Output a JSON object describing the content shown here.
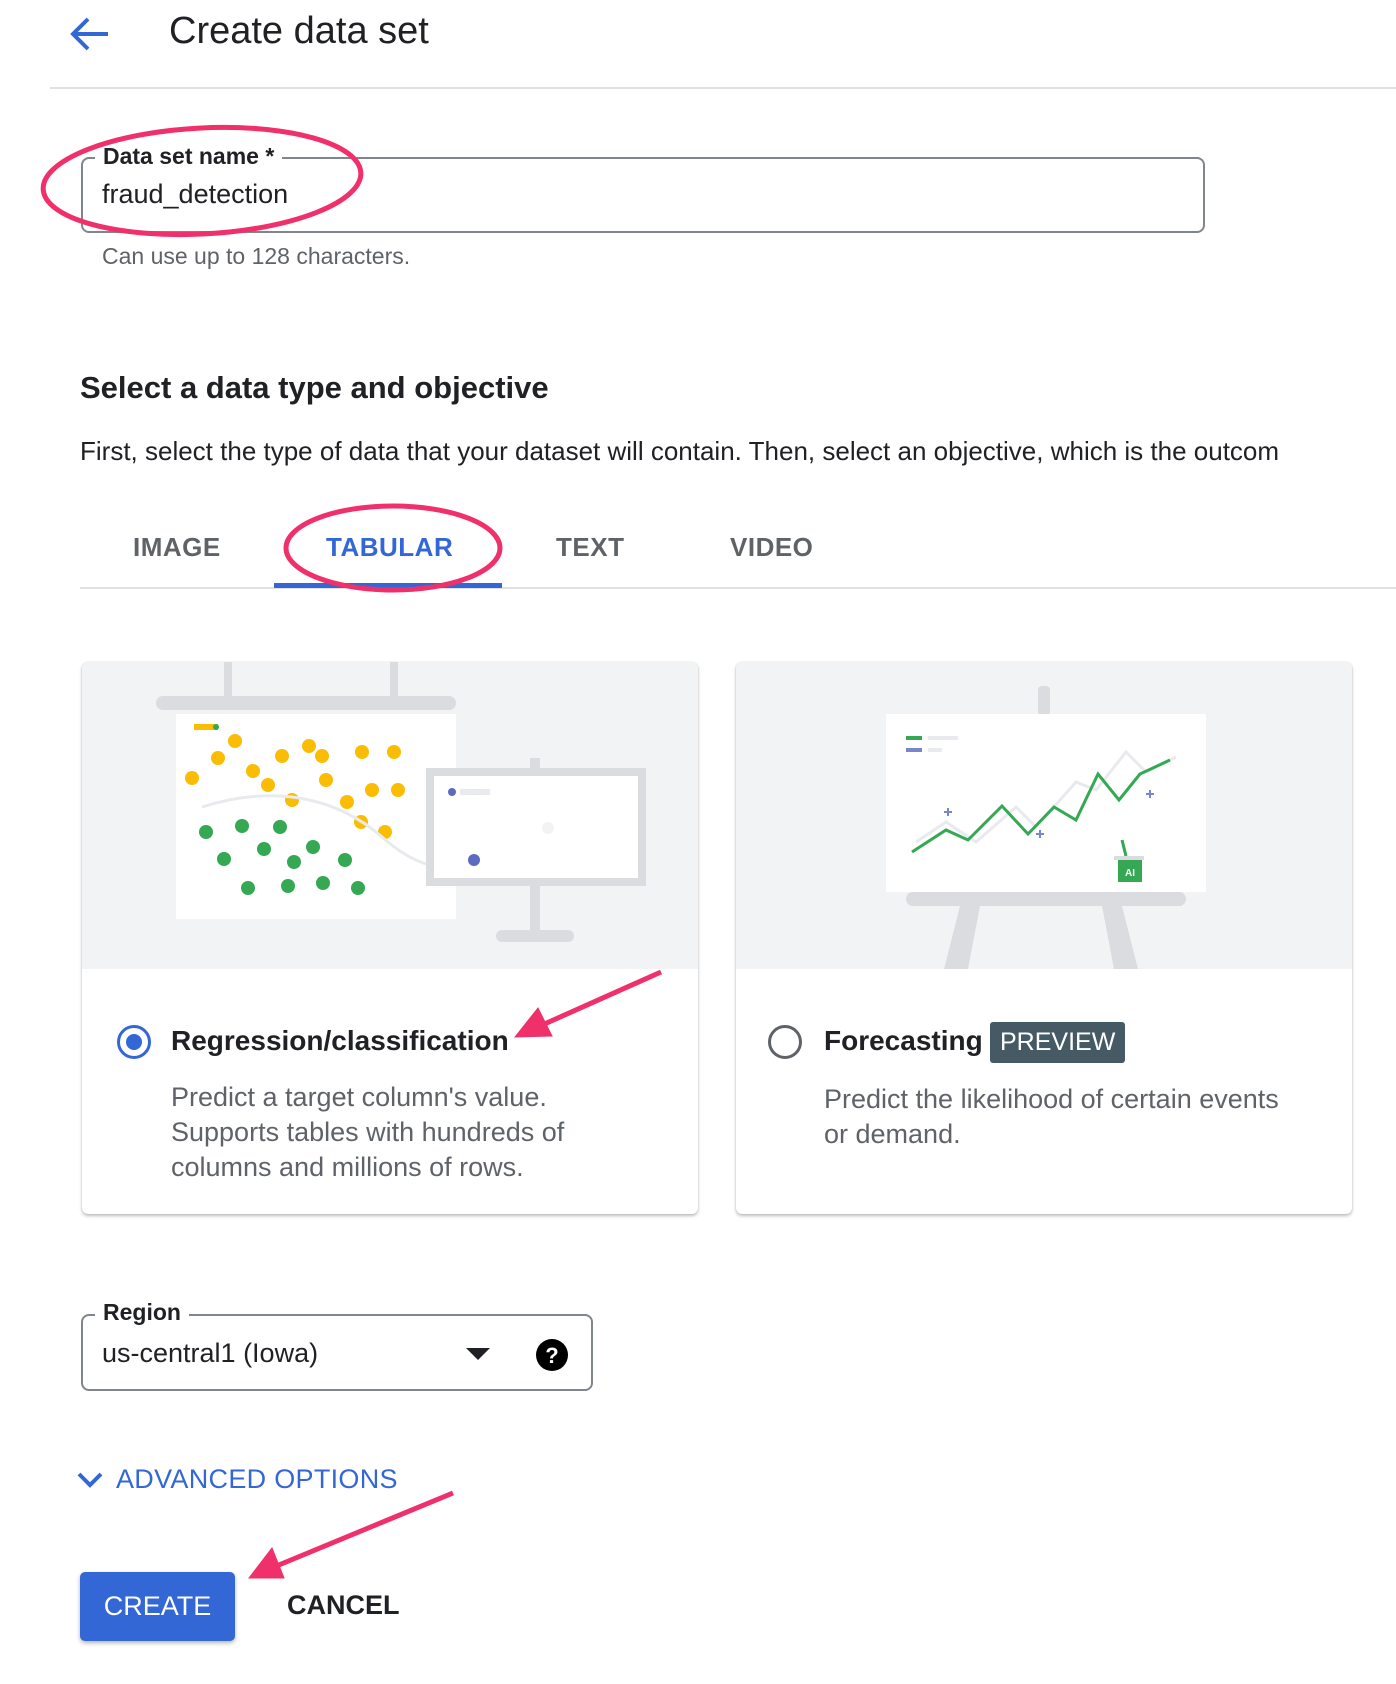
{
  "header": {
    "title": "Create data set",
    "back_icon": "arrow-left-icon"
  },
  "name_field": {
    "label": "Data set name *",
    "value": "fraud_detection",
    "helper": "Can use up to 128 characters."
  },
  "section": {
    "heading": "Select a data type and objective",
    "description": "First, select the type of data that your dataset will contain. Then, select an objective, which is the outcom"
  },
  "tabs": [
    {
      "label": "IMAGE",
      "active": false
    },
    {
      "label": "TABULAR",
      "active": true
    },
    {
      "label": "TEXT",
      "active": false
    },
    {
      "label": "VIDEO",
      "active": false
    }
  ],
  "objectives": [
    {
      "label": "Regression/classification",
      "selected": true,
      "description": [
        "Predict a target column's value.",
        "Supports tables with hundreds of",
        "columns and millions of rows."
      ]
    },
    {
      "label": "Forecasting",
      "badge": "PREVIEW",
      "selected": false,
      "description": [
        "Predict the likelihood of certain events",
        "or demand."
      ],
      "art_badge": "AI"
    }
  ],
  "region": {
    "label": "Region",
    "value": "us-central1 (Iowa)"
  },
  "advanced_options": "ADVANCED OPTIONS",
  "actions": {
    "create": "CREATE",
    "cancel": "CANCEL"
  },
  "colors": {
    "accent": "#3367d6",
    "annotation": "#f0306b",
    "badge": "#455a64"
  }
}
